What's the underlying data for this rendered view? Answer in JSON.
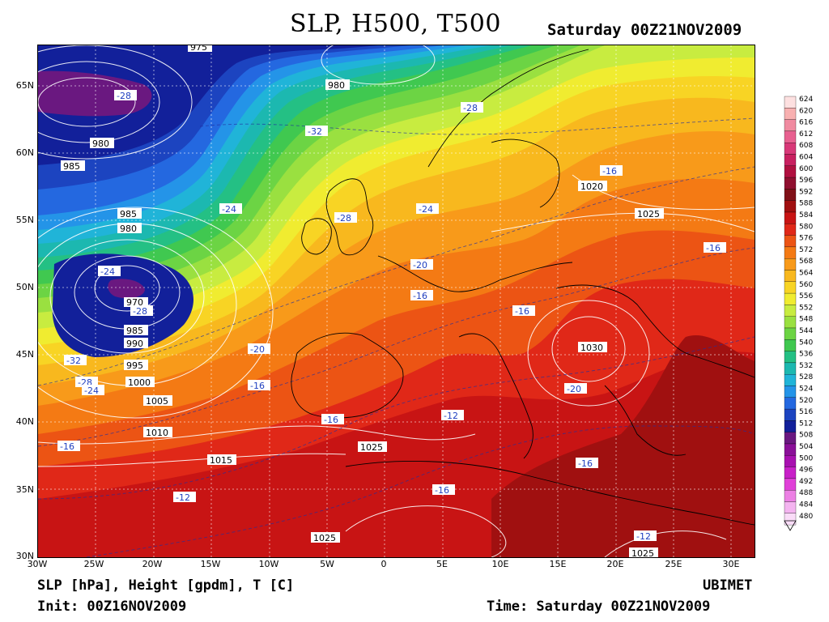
{
  "header": {
    "title": "SLP, H500, T500",
    "valid": "Saturday 00Z21NOV2009"
  },
  "footer": {
    "fields": "SLP [hPa], Height [gpdm], T [C]",
    "provider": "UBIMET",
    "init": "Init: 00Z16NOV2009",
    "time": "Time: Saturday 00Z21NOV2009"
  },
  "axes": {
    "lat": [
      "65N",
      "60N",
      "55N",
      "50N",
      "45N",
      "40N",
      "35N",
      "30N"
    ],
    "lon": [
      "30W",
      "25W",
      "20W",
      "15W",
      "10W",
      "5W",
      "0",
      "5E",
      "10E",
      "15E",
      "20E",
      "25E",
      "30E"
    ]
  },
  "legend": {
    "values": [
      "624",
      "620",
      "616",
      "612",
      "608",
      "604",
      "600",
      "596",
      "592",
      "588",
      "584",
      "580",
      "576",
      "572",
      "568",
      "564",
      "560",
      "556",
      "552",
      "548",
      "544",
      "540",
      "536",
      "532",
      "528",
      "524",
      "520",
      "516",
      "512",
      "508",
      "504",
      "500",
      "496",
      "492",
      "488",
      "484",
      "480"
    ],
    "colors": [
      "#fde0e0",
      "#f8b0b0",
      "#f08aa0",
      "#e86090",
      "#d83878",
      "#c82060",
      "#b01040",
      "#901030",
      "#801018",
      "#a01010",
      "#c81414",
      "#e02818",
      "#ec5414",
      "#f47a14",
      "#f89a1a",
      "#f8b81e",
      "#f8d424",
      "#f0ec30",
      "#c8ec40",
      "#9ae040",
      "#6cd444",
      "#40c850",
      "#24c084",
      "#1cb8b0",
      "#20b4d8",
      "#2494e8",
      "#2468e0",
      "#1c44c0",
      "#12209a",
      "#6a1880",
      "#8a1098",
      "#a810b0",
      "#c820c8",
      "#e040d8",
      "#ec80e4",
      "#f4b4f0",
      "#fadcf8"
    ]
  },
  "map": {
    "pressure_labels": [
      "975",
      "980",
      "980",
      "985",
      "985",
      "980",
      "970",
      "985",
      "990",
      "995",
      "1000",
      "1005",
      "1010",
      "1015",
      "1025",
      "1025",
      "1025",
      "1020",
      "1025",
      "1030"
    ],
    "temp_labels": [
      "-28",
      "-28",
      "-32",
      "-16",
      "-24",
      "-28",
      "-24",
      "-20",
      "-16",
      "-24",
      "-28",
      "-32",
      "-28",
      "-24",
      "-20",
      "-16",
      "-16",
      "-12",
      "-16",
      "-12",
      "-16",
      "-16",
      "-12",
      "-16",
      "-16",
      "-20"
    ]
  }
}
